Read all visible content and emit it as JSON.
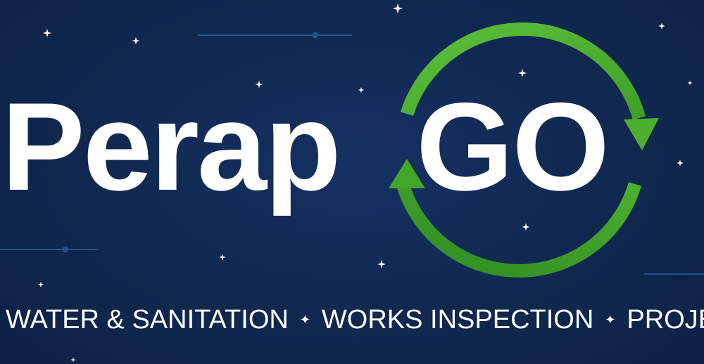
{
  "logo": {
    "word_primary": "Perap",
    "word_secondary": "GO",
    "cycle_icon": "recycle-arrows-icon",
    "accent_color": "#4caf2f",
    "background_color": "#0f2650",
    "text_color": "#ffffff"
  },
  "tagline": {
    "items": [
      "WATER & SANITATION",
      "WORKS INSPECTION",
      "PROJECTS"
    ],
    "separator": "✦"
  }
}
